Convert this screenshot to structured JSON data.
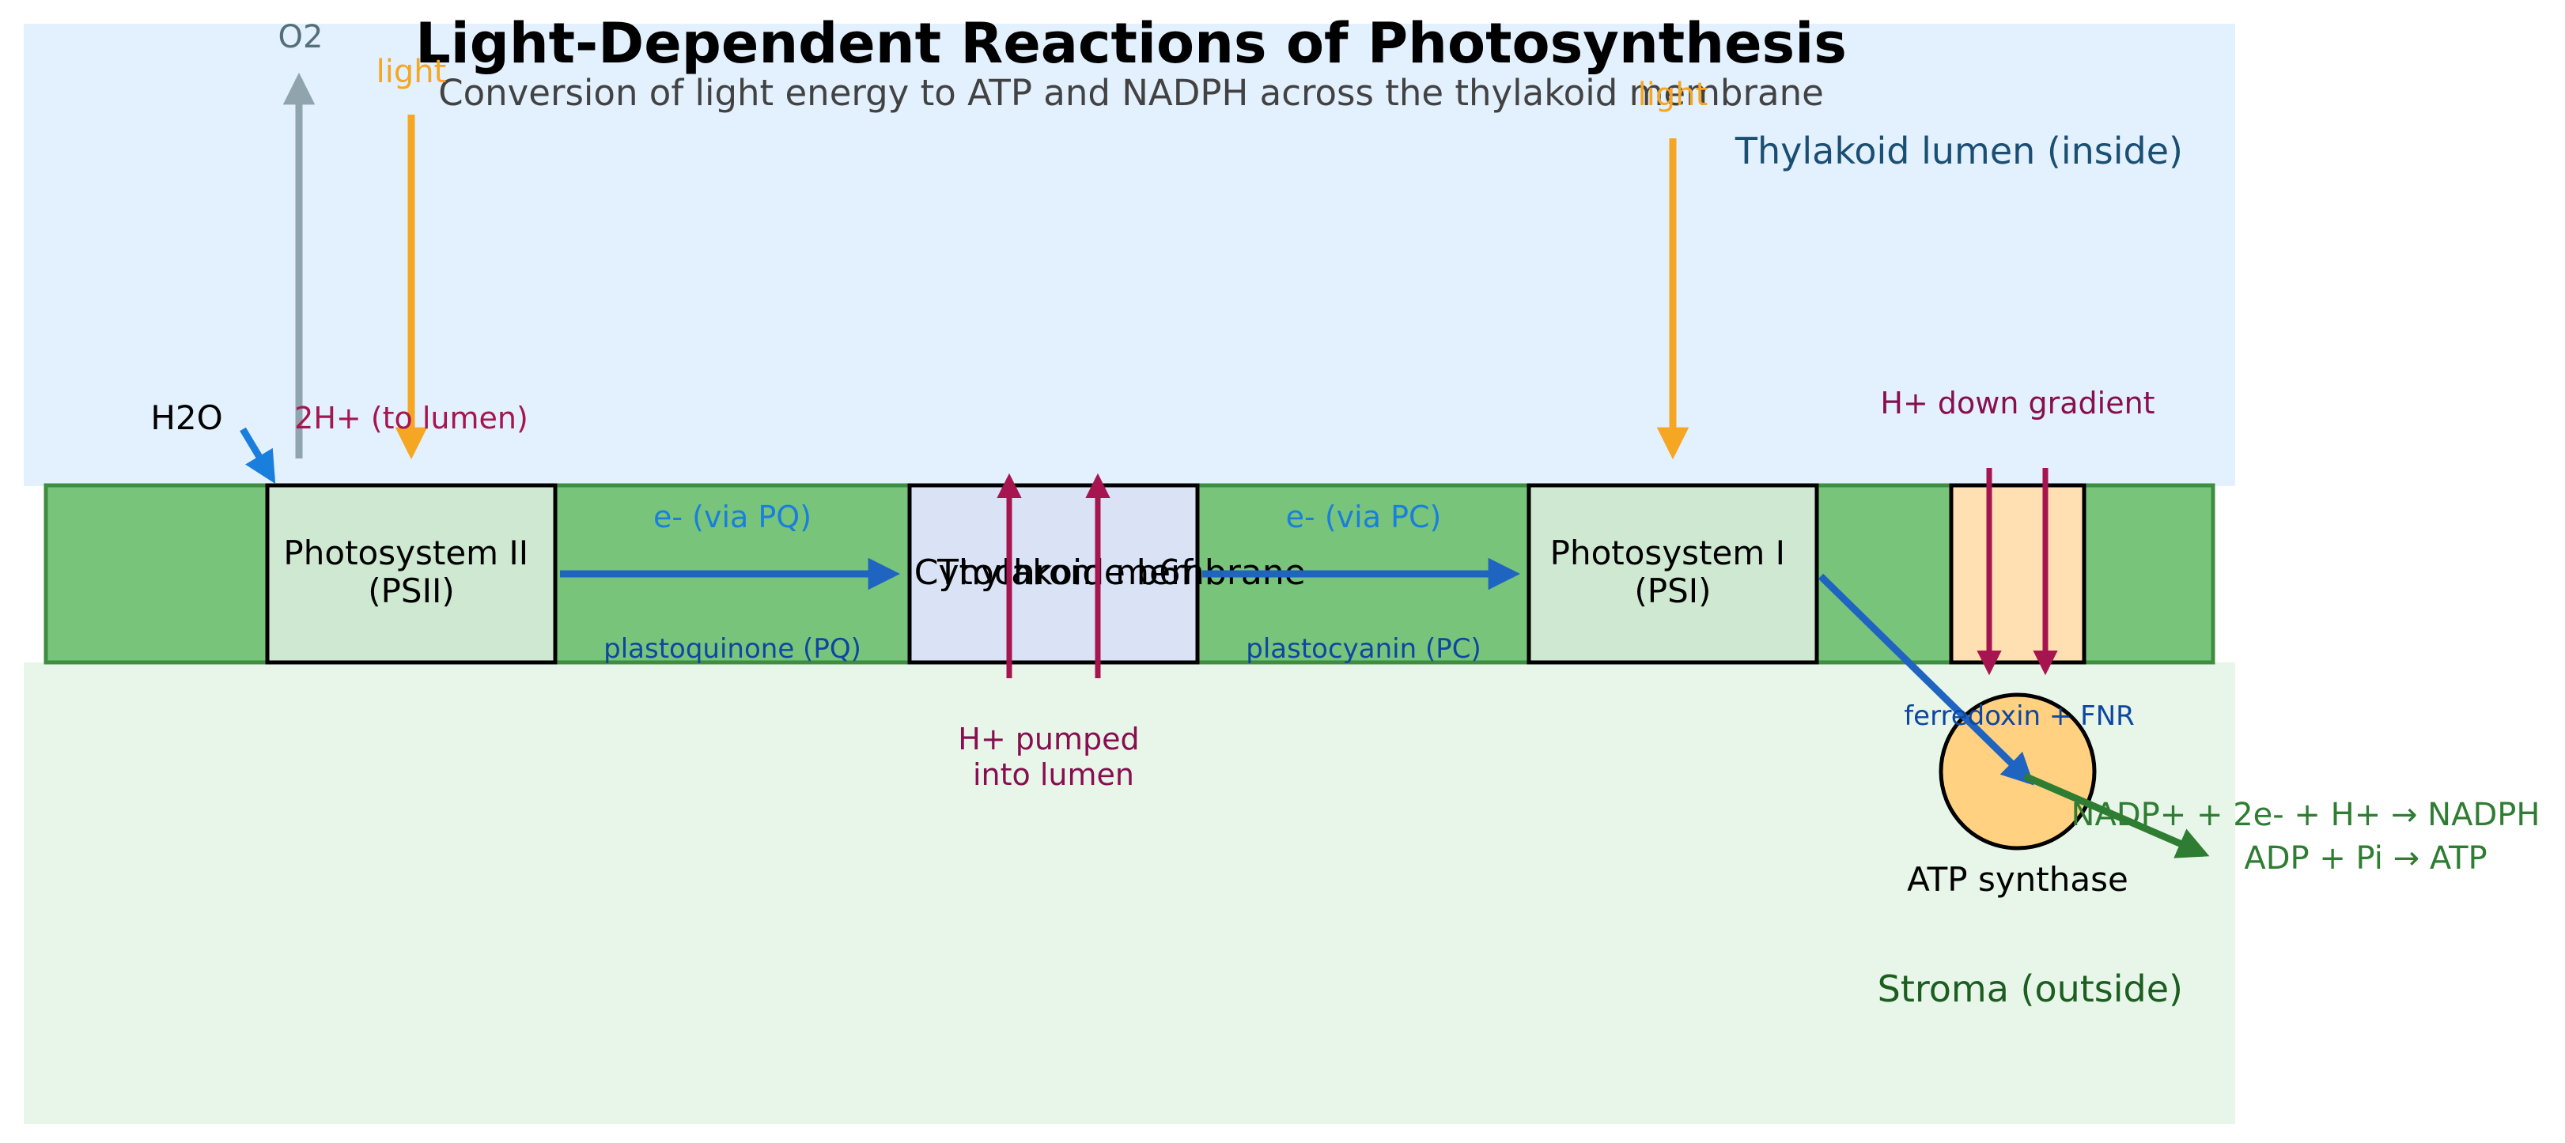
{
  "title": "Light-Dependent Reactions of Photosynthesis",
  "subtitle": "Conversion of light energy to ATP and NADPH across the thylakoid membrane",
  "regions": {
    "lumen": "Thylakoid lumen (inside)",
    "stroma": "Stroma (outside)",
    "membrane": "Thylakoid membrane"
  },
  "complexes": {
    "psii": {
      "line1": "Photosystem II",
      "line2": "(PSII)"
    },
    "cytb6f": "Cytochrome b6f",
    "psi": {
      "line1": "Photosystem I",
      "line2": "(PSI)"
    },
    "atp_synthase": "ATP synthase"
  },
  "labels": {
    "o2": "O2",
    "light_1": "light",
    "light_2": "light",
    "h2o": "H2O",
    "two_h_lumen": "2H+ (to lumen)",
    "e_via_pq": "e- (via PQ)",
    "plastoquinone": "plastoquinone (PQ)",
    "e_via_pc": "e- (via PC)",
    "plastocyanin": "plastocyanin (PC)",
    "h_pumped_1": "H+ pumped",
    "h_pumped_2": "into lumen",
    "h_down": "H+ down gradient",
    "ferredoxin": "ferredoxin + FNR",
    "nadph": "NADP+ + 2e- + H+ → NADPH",
    "atp": "ADP + Pi → ATP"
  },
  "colors": {
    "lumen_bg": "#e3f0fd",
    "stroma_bg": "#e8f5e9",
    "membrane": "#78c47a",
    "membrane_border": "#3e8e41",
    "photosystem_fill": "#cfe8d1",
    "cytb6f_fill": "#dae3f5",
    "atp_fill": "#ffe0b2",
    "atp_circle": "#ffd180",
    "light": "#f5a623",
    "electron": "#1f64c0",
    "proton": "#a6154f",
    "product": "#2e7d32",
    "o2_arrow": "#90a4ae"
  }
}
